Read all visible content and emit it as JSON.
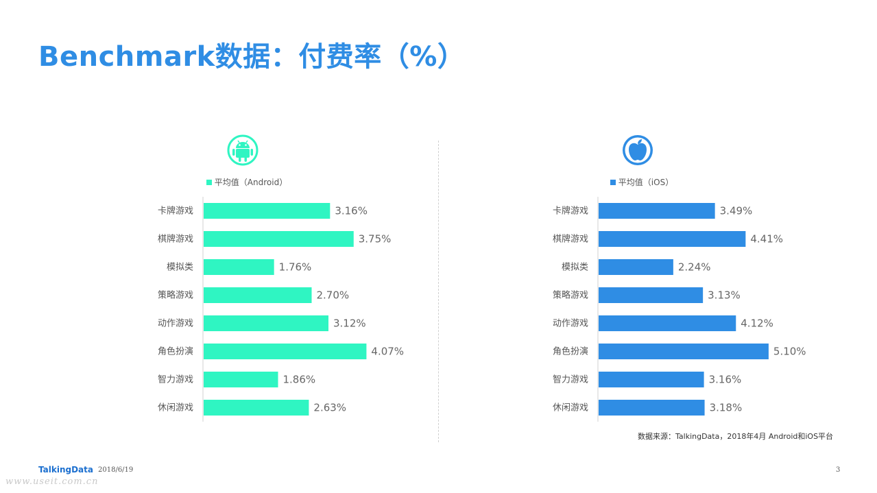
{
  "page": {
    "title": "Benchmark数据：付费率（%）",
    "source": "数据来源：TalkingData，2018年4月 Android和iOS平台",
    "brand": "TalkingData",
    "date": "2018/6/19",
    "page_number": "3",
    "watermark": "www.useit.com.cn"
  },
  "chart_data": [
    {
      "type": "bar",
      "orientation": "horizontal",
      "platform_icon": "android-icon",
      "legend": "平均值（Android）",
      "color": "#2ff5c2",
      "categories": [
        "卡牌游戏",
        "棋牌游戏",
        "模拟类",
        "策略游戏",
        "动作游戏",
        "角色扮演",
        "智力游戏",
        "休闲游戏"
      ],
      "series": [
        {
          "name": "平均值（Android）",
          "values": [
            3.16,
            3.75,
            1.76,
            2.7,
            3.12,
            4.07,
            1.86,
            2.63
          ]
        }
      ],
      "labels": [
        "3.16%",
        "3.75%",
        "1.76%",
        "2.70%",
        "3.12%",
        "4.07%",
        "1.86%",
        "2.63%"
      ],
      "xlim": [
        0,
        6.0
      ],
      "grid": false
    },
    {
      "type": "bar",
      "orientation": "horizontal",
      "platform_icon": "apple-icon",
      "legend": "平均值（iOS）",
      "color": "#2f8de4",
      "categories": [
        "卡牌游戏",
        "棋牌游戏",
        "模拟类",
        "策略游戏",
        "动作游戏",
        "角色扮演",
        "智力游戏",
        "休闲游戏"
      ],
      "series": [
        {
          "name": "平均值（iOS）",
          "values": [
            3.49,
            4.41,
            2.24,
            3.13,
            4.12,
            5.1,
            3.16,
            3.18
          ]
        }
      ],
      "labels": [
        "3.49%",
        "4.41%",
        "2.24%",
        "3.13%",
        "4.12%",
        "5.10%",
        "3.16%",
        "3.18%"
      ],
      "xlim": [
        0,
        7.2
      ],
      "grid": false
    }
  ]
}
